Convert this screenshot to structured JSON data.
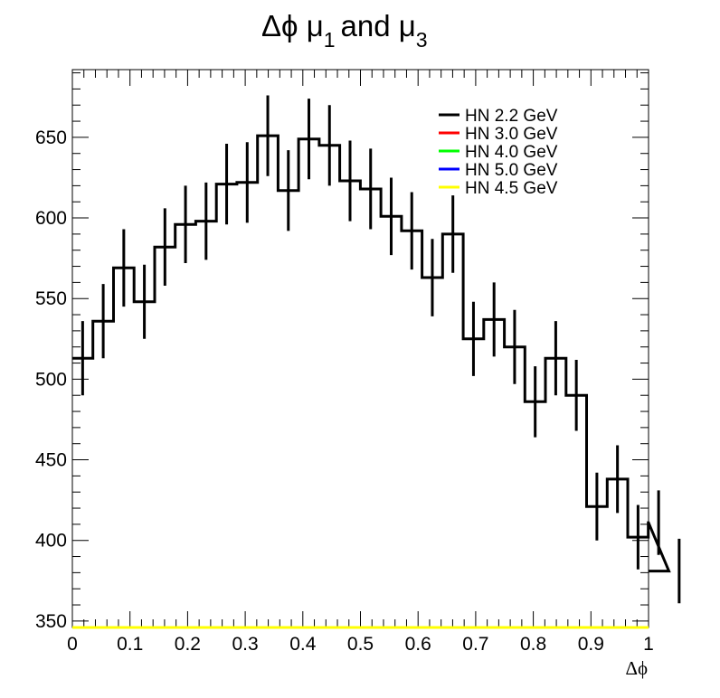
{
  "chart_data": {
    "type": "histogram",
    "title_parts": {
      "lead": "Δϕ μ",
      "sub1": "1",
      "mid": "and μ",
      "sub2": "3"
    },
    "xlabel": "Δϕ",
    "ylabel": "",
    "xlim": [
      0,
      1
    ],
    "ylim": [
      346,
      692
    ],
    "xticks": [
      "0",
      "0.1",
      "0.2",
      "0.3",
      "0.4",
      "0.5",
      "0.6",
      "0.7",
      "0.8",
      "0.9",
      "1"
    ],
    "xtick_values": [
      0,
      0.1,
      0.2,
      0.3,
      0.4,
      0.5,
      0.6,
      0.7,
      0.8,
      0.9,
      1
    ],
    "yticks": [
      "350",
      "400",
      "450",
      "500",
      "550",
      "600",
      "650"
    ],
    "ytick_values": [
      350,
      400,
      450,
      500,
      550,
      600,
      650
    ],
    "bin_width": 0.0357,
    "series": [
      {
        "name": "HN 2.2 GeV",
        "color": "#000000",
        "values": [
          513,
          536,
          569,
          548,
          582,
          596,
          598,
          621,
          622,
          651,
          617,
          649,
          645,
          623,
          618,
          601,
          592,
          563,
          590,
          525,
          537,
          520,
          486,
          513,
          490,
          421,
          438,
          402,
          411,
          381
        ],
        "errors": [
          23,
          23,
          24,
          23,
          24,
          24,
          24,
          25,
          25,
          25,
          25,
          25,
          25,
          25,
          25,
          24,
          24,
          24,
          24,
          23,
          23,
          23,
          22,
          23,
          22,
          21,
          21,
          20,
          20,
          20
        ]
      },
      {
        "name": "HN 3.0 GeV",
        "color": "#ff0000",
        "values": []
      },
      {
        "name": "HN 4.0 GeV",
        "color": "#00ff00",
        "values": []
      },
      {
        "name": "HN 5.0 GeV",
        "color": "#0000ff",
        "values": []
      },
      {
        "name": "HN 4.5 GeV",
        "color": "#ffff00",
        "values": []
      }
    ],
    "legend_position": "top-right",
    "grid": false
  }
}
